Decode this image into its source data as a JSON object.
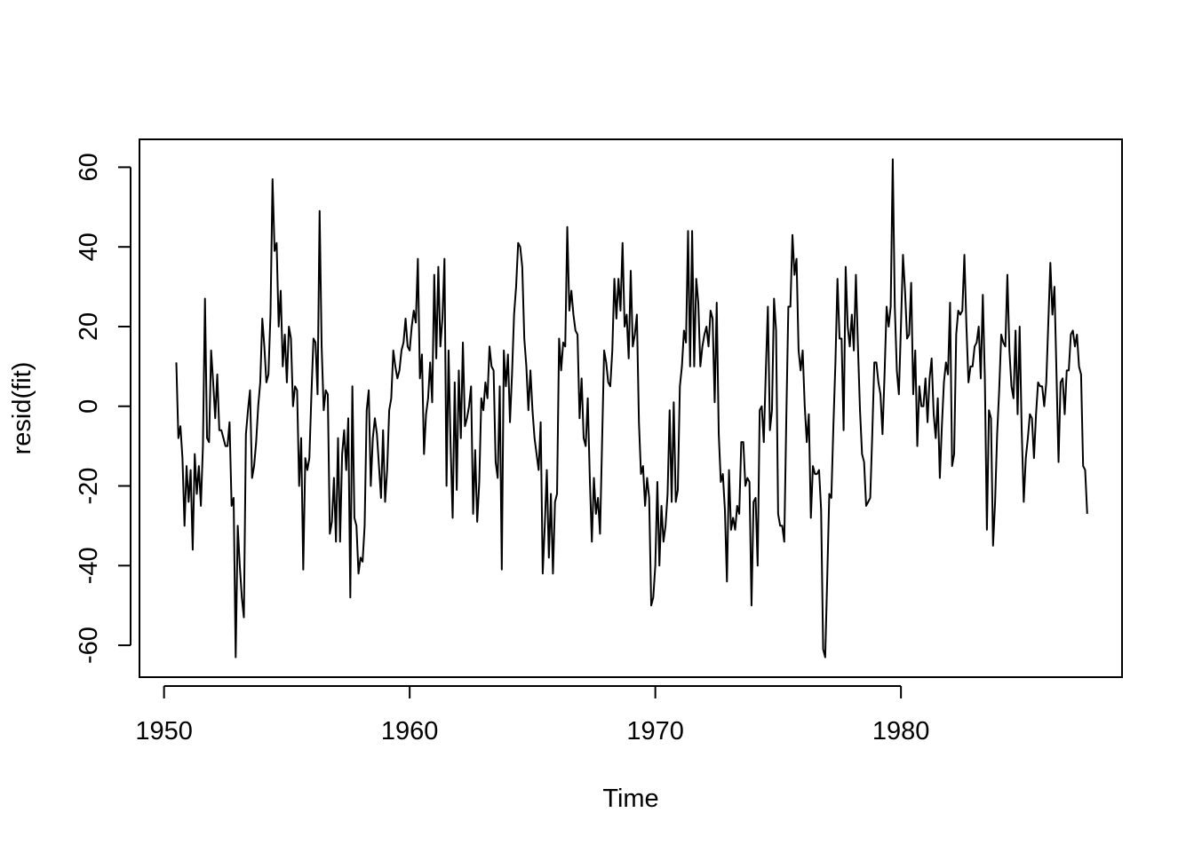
{
  "chart_data": {
    "type": "line",
    "title": "",
    "xlabel": "Time",
    "ylabel": "resid(fit)",
    "xlim": [
      1949,
      1989
    ],
    "ylim": [
      -68,
      67
    ],
    "xticks": [
      1950,
      1960,
      1970,
      1980
    ],
    "xtick_labels": [
      "1950",
      "1960",
      "1970",
      "1980"
    ],
    "yticks": [
      -60,
      -40,
      -20,
      0,
      20,
      40,
      60
    ],
    "ytick_labels": [
      "-60",
      "-40",
      "-20",
      "0",
      "20",
      "40",
      "60"
    ],
    "grid": false,
    "line_color": "#000000",
    "series": [
      {
        "x_start": 1950.5,
        "x_step": 0.08333,
        "values": [
          11,
          -8,
          -5,
          -13,
          -30,
          -15,
          -24,
          -16,
          -36,
          -12,
          -22,
          -15,
          -25,
          -10,
          27,
          -8,
          -9,
          14,
          6,
          -3,
          8,
          -6,
          -6,
          -8,
          -10,
          -10,
          -4,
          -25,
          -23,
          -63,
          -30,
          -40,
          -48,
          -53,
          -7,
          -1,
          4,
          -18,
          -15,
          -9,
          0,
          6,
          22,
          15,
          6,
          8,
          23,
          57,
          39,
          41,
          20,
          29,
          10,
          18,
          6,
          20,
          17,
          0,
          5,
          4,
          -20,
          -8,
          -41,
          -13,
          -16,
          -13,
          3,
          17,
          16,
          3,
          49,
          15,
          -1,
          4,
          3,
          -32,
          -29,
          -18,
          -34,
          -8,
          -34,
          -12,
          -6,
          -16,
          -3,
          -48,
          5,
          -28,
          -30,
          -42,
          -38,
          -39,
          -30,
          -1,
          4,
          -20,
          -8,
          -3,
          -7,
          -15,
          -23,
          -6,
          -24,
          -16,
          -1,
          2,
          14,
          10,
          7,
          9,
          14,
          16,
          22,
          15,
          14,
          20,
          24,
          21,
          37,
          7,
          13,
          -12,
          -2,
          2,
          11,
          1,
          33,
          12,
          35,
          15,
          22,
          37,
          -20,
          14,
          -10,
          -28,
          6,
          -21,
          9,
          -8,
          16,
          -5,
          -3,
          0,
          5,
          -27,
          -11,
          -29,
          -19,
          2,
          -1,
          6,
          2,
          15,
          10,
          9,
          -14,
          -18,
          5,
          -41,
          14,
          5,
          13,
          -4,
          8,
          23,
          30,
          41,
          40,
          35,
          17,
          10,
          -1,
          9,
          -1,
          -8,
          -12,
          -16,
          -4,
          -42,
          -30,
          -16,
          -38,
          -22,
          -42,
          -24,
          -22,
          17,
          9,
          16,
          15,
          45,
          24,
          29,
          23,
          19,
          18,
          -3,
          7,
          -8,
          -10,
          2,
          -18,
          -34,
          -18,
          -27,
          -23,
          -32,
          -9,
          14,
          11,
          6,
          5,
          14,
          32,
          22,
          32,
          24,
          41,
          20,
          23,
          12,
          34,
          15,
          18,
          23,
          -4,
          -17,
          -15,
          -25,
          -18,
          -23,
          -50,
          -48,
          -40,
          -19,
          -40,
          -25,
          -34,
          -30,
          -22,
          -1,
          -24,
          1,
          -24,
          -21,
          5,
          10,
          19,
          16,
          44,
          10,
          44,
          10,
          32,
          26,
          10,
          15,
          18,
          20,
          15,
          24,
          22,
          1,
          26,
          -7,
          -19,
          -17,
          -26,
          -44,
          -16,
          -31,
          -28,
          -31,
          -25,
          -27,
          -9,
          -9,
          -20,
          -18,
          -19,
          -50,
          -24,
          -23,
          -40,
          -1,
          0,
          -9,
          9,
          25,
          -6,
          -1,
          27,
          19,
          -27,
          -30,
          -30,
          -34,
          -3,
          25,
          25,
          43,
          33,
          37,
          14,
          9,
          14,
          0,
          -9,
          -2,
          -28,
          -15,
          -17,
          -17,
          -16,
          -26,
          -61,
          -63,
          -43,
          -22,
          -23,
          -5,
          11,
          32,
          17,
          17,
          -6,
          35,
          20,
          15,
          23,
          14,
          33,
          15,
          -1,
          -12,
          -14,
          -25,
          -24,
          -23,
          -7,
          11,
          11,
          6,
          3,
          -7,
          8,
          25,
          20,
          25,
          62,
          25,
          9,
          3,
          20,
          38,
          29,
          17,
          18,
          31,
          3,
          14,
          -10,
          5,
          0,
          0,
          7,
          -4,
          7,
          12,
          -2,
          -8,
          2,
          -18,
          -5,
          6,
          11,
          8,
          26,
          -15,
          -12,
          18,
          24,
          23,
          24,
          38,
          20,
          6,
          10,
          10,
          15,
          16,
          20,
          7,
          28,
          7,
          -31,
          -1,
          -3,
          -35,
          -24,
          -7,
          4,
          18,
          16,
          15,
          33,
          14,
          5,
          2,
          19,
          -2,
          20,
          -6,
          -24,
          -13,
          -8,
          -2,
          -3,
          -13,
          -2,
          6,
          5,
          5,
          0,
          6,
          21,
          36,
          23,
          30,
          8,
          -14,
          6,
          7,
          -2,
          9,
          9,
          18,
          19,
          15,
          18,
          10,
          8,
          -15,
          -16,
          -27
        ]
      }
    ]
  }
}
